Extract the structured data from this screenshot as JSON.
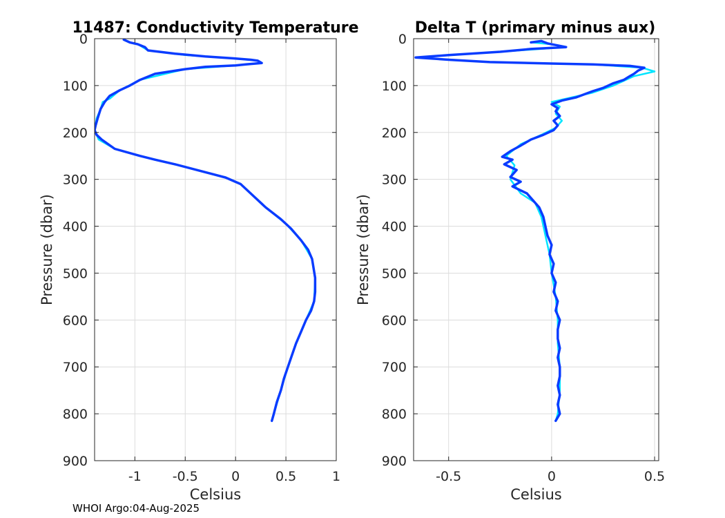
{
  "footer": "WHOI Argo:04-Aug-2025",
  "colors": {
    "primary": "#0a3cff",
    "aux": "#00e5ff",
    "grid": "#dcdcdc",
    "axis": "#262626"
  },
  "chart_data": [
    {
      "type": "line",
      "title": "11487: Conductivity Temperature",
      "xlabel": "Celsius",
      "ylabel": "Pressure (dbar)",
      "xlim": [
        -1.4,
        1
      ],
      "ylim": [
        0,
        900
      ],
      "y_reversed": true,
      "grid": true,
      "xticks": [
        -1,
        -0.5,
        0,
        0.5,
        1
      ],
      "xtick_labels": [
        "-1",
        "-0.5",
        "0",
        "0.5",
        "1"
      ],
      "yticks": [
        0,
        100,
        200,
        300,
        400,
        500,
        600,
        700,
        800,
        900
      ],
      "ytick_labels": [
        "0",
        "100",
        "200",
        "300",
        "400",
        "500",
        "600",
        "700",
        "800",
        "900"
      ],
      "series": [
        {
          "name": "aux",
          "color": "#00e5ff",
          "points": [
            [
              -1.11,
              2
            ],
            [
              -1.05,
              8
            ],
            [
              -0.97,
              12
            ],
            [
              -0.87,
              25
            ],
            [
              -0.5,
              35
            ],
            [
              -0.02,
              42
            ],
            [
              0.22,
              47
            ],
            [
              0.26,
              52
            ],
            [
              0.0,
              57
            ],
            [
              -0.5,
              65
            ],
            [
              -0.95,
              88
            ],
            [
              -1.15,
              110
            ],
            [
              -1.25,
              128
            ],
            [
              -1.32,
              135
            ],
            [
              -1.34,
              150
            ],
            [
              -1.38,
              170
            ],
            [
              -1.4,
              195
            ],
            [
              -1.36,
              215
            ],
            [
              -1.2,
              235
            ],
            [
              -0.95,
              250
            ],
            [
              -0.6,
              268
            ],
            [
              -0.35,
              282
            ],
            [
              -0.1,
              296
            ],
            [
              0.05,
              310
            ],
            [
              0.15,
              330
            ],
            [
              0.3,
              360
            ],
            [
              0.5,
              395
            ],
            [
              0.65,
              430
            ],
            [
              0.76,
              470
            ],
            [
              0.79,
              510
            ],
            [
              0.78,
              560
            ],
            [
              0.7,
              600
            ],
            [
              0.6,
              650
            ],
            [
              0.52,
              700
            ],
            [
              0.45,
              750
            ],
            [
              0.38,
              800
            ],
            [
              0.36,
              815
            ]
          ]
        },
        {
          "name": "primary",
          "color": "#0a3cff",
          "points": [
            [
              -1.11,
              2
            ],
            [
              -1.05,
              8
            ],
            [
              -0.97,
              12
            ],
            [
              -0.9,
              18
            ],
            [
              -0.87,
              25
            ],
            [
              -0.6,
              32
            ],
            [
              -0.3,
              38
            ],
            [
              -0.02,
              42
            ],
            [
              0.15,
              45
            ],
            [
              0.22,
              47
            ],
            [
              0.26,
              52
            ],
            [
              0.1,
              55
            ],
            [
              0.0,
              57
            ],
            [
              -0.3,
              60
            ],
            [
              -0.5,
              65
            ],
            [
              -0.8,
              75
            ],
            [
              -0.95,
              88
            ],
            [
              -1.05,
              100
            ],
            [
              -1.15,
              110
            ],
            [
              -1.25,
              122
            ],
            [
              -1.3,
              135
            ],
            [
              -1.34,
              150
            ],
            [
              -1.37,
              170
            ],
            [
              -1.39,
              185
            ],
            [
              -1.4,
              195
            ],
            [
              -1.38,
              205
            ],
            [
              -1.33,
              215
            ],
            [
              -1.2,
              235
            ],
            [
              -0.95,
              250
            ],
            [
              -0.8,
              258
            ],
            [
              -0.6,
              268
            ],
            [
              -0.35,
              282
            ],
            [
              -0.1,
              296
            ],
            [
              0.05,
              310
            ],
            [
              0.15,
              330
            ],
            [
              0.3,
              360
            ],
            [
              0.45,
              385
            ],
            [
              0.55,
              405
            ],
            [
              0.65,
              430
            ],
            [
              0.72,
              450
            ],
            [
              0.76,
              470
            ],
            [
              0.79,
              510
            ],
            [
              0.79,
              540
            ],
            [
              0.78,
              560
            ],
            [
              0.75,
              580
            ],
            [
              0.7,
              600
            ],
            [
              0.65,
              625
            ],
            [
              0.6,
              650
            ],
            [
              0.56,
              675
            ],
            [
              0.52,
              700
            ],
            [
              0.48,
              725
            ],
            [
              0.45,
              750
            ],
            [
              0.41,
              775
            ],
            [
              0.38,
              800
            ],
            [
              0.36,
              815
            ]
          ]
        }
      ]
    },
    {
      "type": "line",
      "title": "Delta T (primary minus aux)",
      "xlabel": "Celsius",
      "ylabel": "Pressure (dbar)",
      "xlim": [
        -0.67,
        0.52
      ],
      "ylim": [
        0,
        900
      ],
      "y_reversed": true,
      "grid": true,
      "xticks": [
        -0.5,
        0,
        0.5
      ],
      "xtick_labels": [
        "-0.5",
        "0",
        "0.5"
      ],
      "yticks": [
        0,
        100,
        200,
        300,
        400,
        500,
        600,
        700,
        800,
        900
      ],
      "ytick_labels": [
        "0",
        "100",
        "200",
        "300",
        "400",
        "500",
        "600",
        "700",
        "800",
        "900"
      ],
      "series": [
        {
          "name": "aux",
          "color": "#00e5ff",
          "points": [
            [
              -0.1,
              8
            ],
            [
              0.0,
              12
            ],
            [
              0.07,
              18
            ],
            [
              -0.25,
              28
            ],
            [
              -0.66,
              40
            ],
            [
              -0.3,
              50
            ],
            [
              0.2,
              55
            ],
            [
              0.44,
              62
            ],
            [
              0.5,
              70
            ],
            [
              0.4,
              80
            ],
            [
              0.35,
              90
            ],
            [
              0.3,
              100
            ],
            [
              0.2,
              115
            ],
            [
              0.1,
              125
            ],
            [
              0.0,
              135
            ],
            [
              0.04,
              145
            ],
            [
              0.02,
              160
            ],
            [
              0.05,
              175
            ],
            [
              0.02,
              190
            ],
            [
              -0.05,
              205
            ],
            [
              -0.15,
              225
            ],
            [
              -0.22,
              250
            ],
            [
              -0.18,
              270
            ],
            [
              -0.2,
              300
            ],
            [
              -0.15,
              330
            ],
            [
              -0.08,
              350
            ],
            [
              -0.05,
              380
            ],
            [
              -0.03,
              420
            ],
            [
              -0.01,
              460
            ],
            [
              0.0,
              500
            ],
            [
              0.02,
              550
            ],
            [
              0.03,
              600
            ],
            [
              0.03,
              650
            ],
            [
              0.04,
              700
            ],
            [
              0.04,
              750
            ],
            [
              0.03,
              800
            ],
            [
              0.02,
              815
            ]
          ]
        },
        {
          "name": "primary",
          "color": "#0a3cff",
          "points": [
            [
              -0.1,
              8
            ],
            [
              -0.05,
              5
            ],
            [
              -0.02,
              10
            ],
            [
              0.0,
              12
            ],
            [
              0.07,
              18
            ],
            [
              -0.1,
              22
            ],
            [
              -0.25,
              28
            ],
            [
              -0.5,
              35
            ],
            [
              -0.66,
              40
            ],
            [
              -0.5,
              45
            ],
            [
              -0.3,
              50
            ],
            [
              0.0,
              53
            ],
            [
              0.2,
              55
            ],
            [
              0.38,
              58
            ],
            [
              0.45,
              62
            ],
            [
              0.42,
              68
            ],
            [
              0.4,
              75
            ],
            [
              0.38,
              80
            ],
            [
              0.35,
              88
            ],
            [
              0.3,
              95
            ],
            [
              0.25,
              105
            ],
            [
              0.2,
              112
            ],
            [
              0.12,
              125
            ],
            [
              0.05,
              132
            ],
            [
              0.0,
              140
            ],
            [
              0.03,
              148
            ],
            [
              0.02,
              155
            ],
            [
              0.04,
              165
            ],
            [
              0.01,
              175
            ],
            [
              0.03,
              185
            ],
            [
              0.01,
              195
            ],
            [
              -0.04,
              205
            ],
            [
              -0.1,
              215
            ],
            [
              -0.15,
              228
            ],
            [
              -0.2,
              240
            ],
            [
              -0.24,
              252
            ],
            [
              -0.19,
              258
            ],
            [
              -0.23,
              268
            ],
            [
              -0.17,
              280
            ],
            [
              -0.2,
              295
            ],
            [
              -0.15,
              305
            ],
            [
              -0.19,
              315
            ],
            [
              -0.12,
              330
            ],
            [
              -0.09,
              345
            ],
            [
              -0.06,
              360
            ],
            [
              -0.04,
              380
            ],
            [
              -0.03,
              400
            ],
            [
              -0.02,
              420
            ],
            [
              0.0,
              440
            ],
            [
              -0.01,
              460
            ],
            [
              0.01,
              480
            ],
            [
              0.0,
              500
            ],
            [
              0.02,
              520
            ],
            [
              0.01,
              540
            ],
            [
              0.03,
              560
            ],
            [
              0.02,
              580
            ],
            [
              0.04,
              600
            ],
            [
              0.03,
              620
            ],
            [
              0.03,
              640
            ],
            [
              0.04,
              660
            ],
            [
              0.03,
              680
            ],
            [
              0.04,
              700
            ],
            [
              0.04,
              720
            ],
            [
              0.03,
              740
            ],
            [
              0.04,
              760
            ],
            [
              0.03,
              780
            ],
            [
              0.04,
              800
            ],
            [
              0.02,
              815
            ]
          ]
        }
      ]
    }
  ]
}
